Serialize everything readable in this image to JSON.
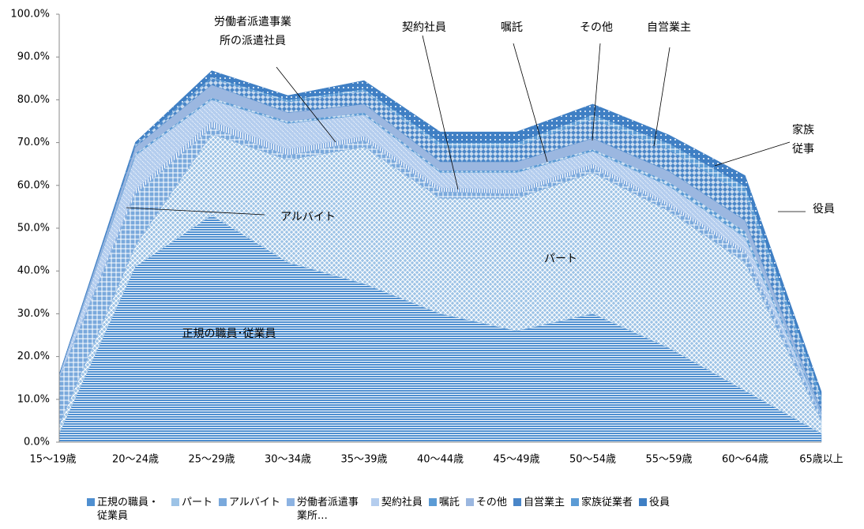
{
  "chart_data": {
    "type": "stacked-area",
    "categories": [
      "15〜19歳",
      "20〜24歳",
      "25〜29歳",
      "30〜34歳",
      "35〜39歳",
      "40〜44歳",
      "45〜49歳",
      "50〜54歳",
      "55〜59歳",
      "60〜64歳",
      "65歳以上"
    ],
    "series": [
      {
        "name": "正規の職員・従業員",
        "color": "#4f8fd0",
        "values": [
          2,
          41,
          53,
          42,
          37,
          30,
          26,
          30,
          22,
          12,
          2
        ]
      },
      {
        "name": "パート",
        "color": "#9dc3e6",
        "values": [
          2,
          5,
          19,
          24,
          32,
          27,
          31,
          33,
          32,
          30,
          3
        ]
      },
      {
        "name": "アルバイト",
        "color": "#7aa9dc",
        "values": [
          11,
          12,
          1.5,
          1,
          1.5,
          1.5,
          1,
          1,
          1,
          2,
          1
        ]
      },
      {
        "name": "労働者派遣事業所…",
        "color": "#8db3e2",
        "values": [
          0.2,
          1,
          1.5,
          1.5,
          1,
          1,
          1,
          1,
          0.8,
          0.8,
          0.2
        ]
      },
      {
        "name": "契約社員",
        "color": "#b4cdee",
        "values": [
          0.3,
          8,
          5,
          6,
          5,
          3.5,
          4,
          3,
          4,
          3,
          0.3
        ]
      },
      {
        "name": "嘱託",
        "color": "#5b9bd5",
        "values": [
          0,
          0.5,
          0.5,
          0.5,
          0.5,
          0.5,
          0.5,
          0.5,
          1,
          1.5,
          0.3
        ]
      },
      {
        "name": "その他",
        "color": "#9bb7e0",
        "values": [
          0.3,
          1.5,
          3,
          2,
          2,
          2,
          2,
          2.5,
          2.5,
          2.5,
          0.5
        ]
      },
      {
        "name": "自営業主",
        "color": "#4a86c8",
        "values": [
          0,
          0.5,
          1.5,
          2.5,
          3,
          3.5,
          3.5,
          4.5,
          5,
          6,
          2
        ]
      },
      {
        "name": "家族従業者",
        "color": "#5b9bd5",
        "values": [
          0,
          0.1,
          0.3,
          0.5,
          0.5,
          1,
          1,
          1,
          1.5,
          2,
          1.5
        ]
      },
      {
        "name": "役員",
        "color": "#3f7fc4",
        "values": [
          0,
          0.5,
          1.5,
          1,
          2,
          2.5,
          2.5,
          2.5,
          2,
          2.5,
          1
        ]
      }
    ],
    "ylim": [
      0,
      100
    ],
    "yticks": [
      {
        "value": 0,
        "label": "0.0%"
      },
      {
        "value": 10,
        "label": "10.0%"
      },
      {
        "value": 20,
        "label": "20.0%"
      },
      {
        "value": 30,
        "label": "30.0%"
      },
      {
        "value": 40,
        "label": "40.0%"
      },
      {
        "value": 50,
        "label": "50.0%"
      },
      {
        "value": 60,
        "label": "60.0%"
      },
      {
        "value": 70,
        "label": "70.0%"
      },
      {
        "value": 80,
        "label": "80.0%"
      },
      {
        "value": 90,
        "label": "90.0%"
      },
      {
        "value": 100,
        "label": "100.0%"
      }
    ],
    "annotations": [
      [
        "正規の職員･従業員"
      ],
      [
        "パート"
      ],
      [
        "アルバイト"
      ],
      [
        "労働者派遣事業",
        "所の派遣社員"
      ],
      [
        "契約社員"
      ],
      [
        "嘱託"
      ],
      [
        "その他"
      ],
      [
        "自営業主"
      ],
      [
        "家族",
        "従事"
      ],
      [
        "役員"
      ]
    ],
    "legend": "bottom"
  }
}
